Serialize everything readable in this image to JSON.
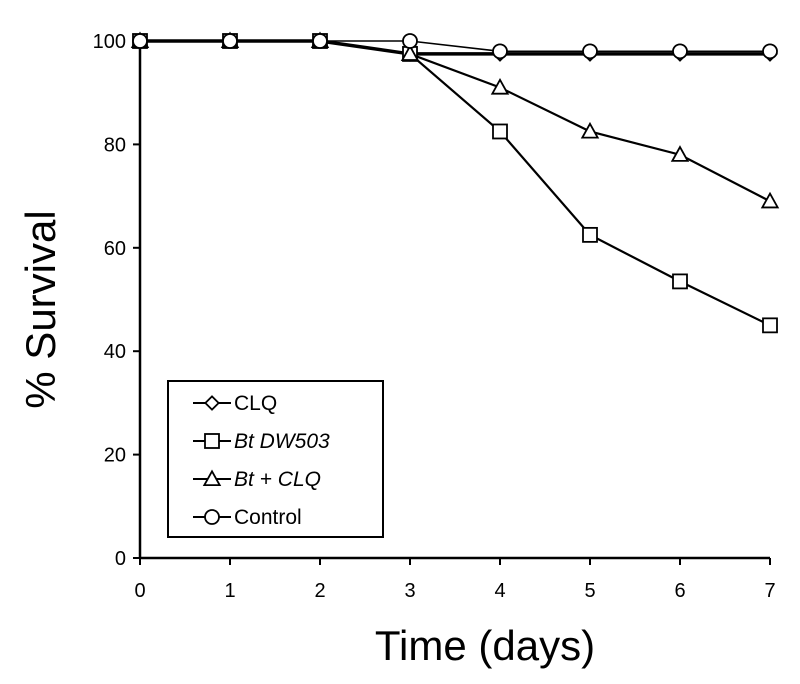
{
  "chart_data": {
    "type": "line",
    "title": "",
    "xlabel": "Time (days)",
    "ylabel": "% Survival",
    "x": [
      0,
      1,
      2,
      3,
      4,
      5,
      6,
      7
    ],
    "xlim": [
      0,
      7
    ],
    "ylim": [
      0,
      100
    ],
    "xticks": [
      "0",
      "1",
      "2",
      "3",
      "4",
      "5",
      "6",
      "7"
    ],
    "yticks": [
      "0",
      "20",
      "40",
      "60",
      "80",
      "100"
    ],
    "grid": false,
    "legend_position": "bottom-left",
    "series": [
      {
        "name": "CLQ",
        "marker": "diamond",
        "italic": false,
        "values": [
          100,
          100,
          100,
          97.5,
          97.5,
          97.5,
          97.5,
          97.5
        ]
      },
      {
        "name": "Bt DW503",
        "marker": "square",
        "italic": true,
        "values": [
          100,
          100,
          100,
          97.5,
          82.5,
          62.5,
          53.5,
          45
        ]
      },
      {
        "name": "Bt + CLQ",
        "marker": "triangle",
        "italic": true,
        "values": [
          100,
          100,
          100,
          97.5,
          91,
          82.5,
          78,
          69
        ]
      },
      {
        "name": "Control",
        "marker": "circle",
        "italic": false,
        "values": [
          100,
          100,
          100,
          100,
          98,
          98,
          98,
          98
        ]
      }
    ]
  }
}
